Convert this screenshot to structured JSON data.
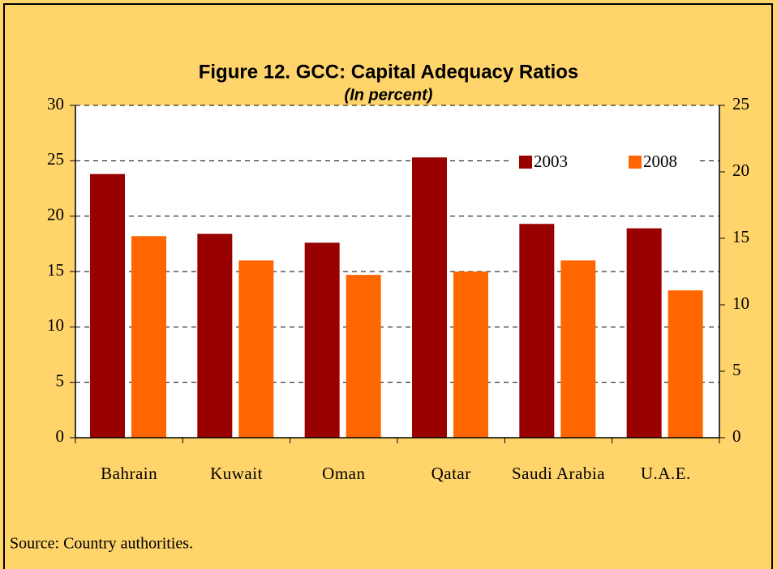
{
  "chart_data": {
    "type": "bar",
    "title": "Figure 12. GCC: Capital Adequacy Ratios",
    "subtitle": "(In percent)",
    "categories": [
      "Bahrain",
      "Kuwait",
      "Oman",
      "Qatar",
      "Saudi Arabia",
      "U.A.E."
    ],
    "series": [
      {
        "name": "2003",
        "color": "#990000",
        "values": [
          23.8,
          18.4,
          17.6,
          25.3,
          19.3,
          18.9
        ]
      },
      {
        "name": "2008",
        "color": "#ff6600",
        "values": [
          18.2,
          16.0,
          14.7,
          15.0,
          16.0,
          13.3
        ]
      }
    ],
    "ylim": [
      0,
      30
    ],
    "yticks": [
      0,
      5,
      10,
      15,
      20,
      25,
      30
    ],
    "y2lim": [
      0,
      25
    ],
    "y2ticks": [
      0,
      5,
      10,
      15,
      20,
      25
    ],
    "grid": true,
    "legend": "top-right",
    "source": "Source: Country authorities."
  }
}
